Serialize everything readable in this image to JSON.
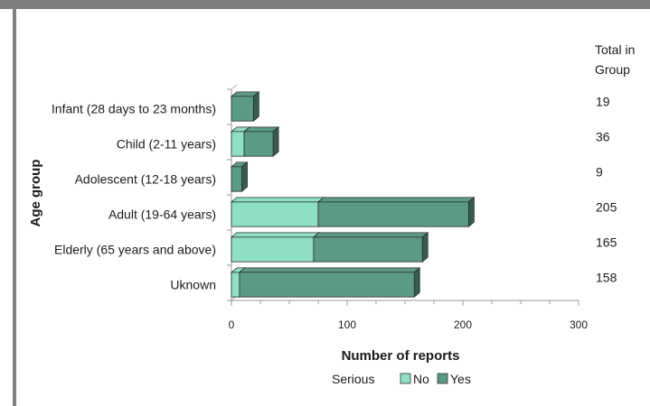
{
  "chart_data": {
    "type": "bar",
    "orientation": "horizontal",
    "stacked": true,
    "three_d": true,
    "categories": [
      "Infant (28 days to 23 months)",
      "Child (2-11 years)",
      "Adolescent (12-18 years)",
      "Adult (19-64 years)",
      "Elderly (65 years and above)",
      "Uknown"
    ],
    "series": [
      {
        "name": "No",
        "color": "#8ee0c2",
        "values": [
          0,
          11,
          0,
          75,
          71,
          7
        ]
      },
      {
        "name": "Yes",
        "color": "#5a9a86",
        "values": [
          19,
          25,
          9,
          130,
          94,
          151
        ]
      }
    ],
    "totals_header": "Total in Group",
    "totals": [
      "19",
      "36",
      "9",
      "205",
      "165",
      "158"
    ],
    "xlabel": "Number of reports",
    "ylabel": "Age group",
    "xlim": [
      0,
      300
    ],
    "xticks": [
      "0",
      "100",
      "200",
      "300"
    ],
    "legend": {
      "title": "Serious",
      "placement": "bottom"
    },
    "grid": false
  }
}
